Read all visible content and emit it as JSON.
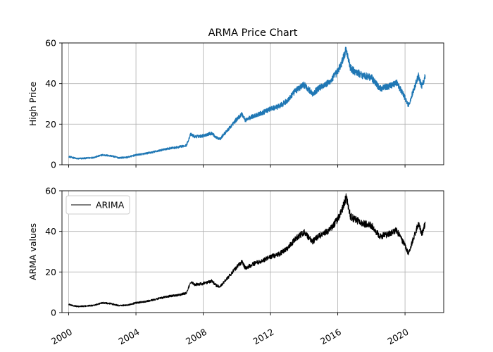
{
  "chart_data": [
    {
      "type": "line",
      "title": "ARMA Price Chart",
      "xlabel": "",
      "ylabel": "High  Price",
      "xlim": [
        1999.6,
        2022.3
      ],
      "ylim": [
        0,
        60
      ],
      "yticks": [
        0,
        20,
        40,
        60
      ],
      "xticks": [
        2000,
        2004,
        2008,
        2012,
        2016,
        2020
      ],
      "xtick_labels_shown": false,
      "grid": true,
      "legend": null,
      "series": [
        {
          "color": "#1f77b4",
          "x": [
            2000.0,
            2000.5,
            2001.0,
            2001.5,
            2002.0,
            2002.5,
            2003.0,
            2003.5,
            2004.0,
            2004.5,
            2005.0,
            2005.5,
            2006.0,
            2006.5,
            2007.0,
            2007.25,
            2007.5,
            2008.0,
            2008.5,
            2008.8,
            2009.0,
            2009.5,
            2010.0,
            2010.3,
            2010.5,
            2011.0,
            2011.5,
            2012.0,
            2012.5,
            2013.0,
            2013.5,
            2014.0,
            2014.5,
            2015.0,
            2015.5,
            2016.0,
            2016.25,
            2016.5,
            2016.75,
            2017.0,
            2017.5,
            2018.0,
            2018.5,
            2019.0,
            2019.5,
            2020.0,
            2020.2,
            2020.5,
            2020.8,
            2021.0,
            2021.2
          ],
          "values": [
            4.0,
            3.0,
            3.2,
            3.6,
            4.8,
            4.4,
            3.4,
            3.7,
            4.8,
            5.4,
            6.2,
            7.2,
            8.1,
            8.6,
            9.6,
            15.0,
            13.8,
            14.3,
            15.6,
            13.2,
            12.8,
            17.5,
            22.5,
            25.0,
            22.0,
            24.0,
            25.5,
            27.5,
            28.7,
            31.5,
            36.5,
            39.5,
            35.0,
            38.5,
            40.5,
            46.0,
            50.5,
            57.0,
            47.5,
            46.0,
            44.0,
            43.0,
            37.5,
            38.5,
            40.5,
            33.0,
            29.0,
            36.5,
            44.0,
            38.5,
            44.0
          ]
        }
      ]
    },
    {
      "type": "line",
      "title": "",
      "xlabel": "",
      "ylabel": "ARMA values",
      "xlim": [
        1999.6,
        2022.3
      ],
      "ylim": [
        0,
        60
      ],
      "yticks": [
        0,
        20,
        40,
        60
      ],
      "xticks": [
        2000,
        2004,
        2008,
        2012,
        2016,
        2020
      ],
      "xtick_labels": [
        "2000",
        "2004",
        "2008",
        "2012",
        "2016",
        "2020"
      ],
      "grid": true,
      "legend": "top-left",
      "series": [
        {
          "name": "ARIMA",
          "color": "#000000",
          "x": [
            2000.0,
            2000.5,
            2001.0,
            2001.5,
            2002.0,
            2002.5,
            2003.0,
            2003.5,
            2004.0,
            2004.5,
            2005.0,
            2005.5,
            2006.0,
            2006.5,
            2007.0,
            2007.25,
            2007.5,
            2008.0,
            2008.5,
            2008.8,
            2009.0,
            2009.5,
            2010.0,
            2010.3,
            2010.5,
            2011.0,
            2011.5,
            2012.0,
            2012.5,
            2013.0,
            2013.5,
            2014.0,
            2014.5,
            2015.0,
            2015.5,
            2016.0,
            2016.25,
            2016.5,
            2016.75,
            2017.0,
            2017.5,
            2018.0,
            2018.5,
            2019.0,
            2019.5,
            2020.0,
            2020.2,
            2020.5,
            2020.8,
            2021.0,
            2021.2
          ],
          "values": [
            4.0,
            3.0,
            3.2,
            3.6,
            4.8,
            4.4,
            3.4,
            3.7,
            4.8,
            5.4,
            6.2,
            7.2,
            8.1,
            8.6,
            9.6,
            15.0,
            13.8,
            14.3,
            15.6,
            13.2,
            12.8,
            17.5,
            22.5,
            25.0,
            22.0,
            24.0,
            25.5,
            27.5,
            28.7,
            31.5,
            36.5,
            39.5,
            35.0,
            38.5,
            40.5,
            46.0,
            50.5,
            57.0,
            47.5,
            46.0,
            44.0,
            43.0,
            37.5,
            38.5,
            40.5,
            33.0,
            29.0,
            36.5,
            44.0,
            38.5,
            44.0
          ]
        }
      ]
    }
  ]
}
